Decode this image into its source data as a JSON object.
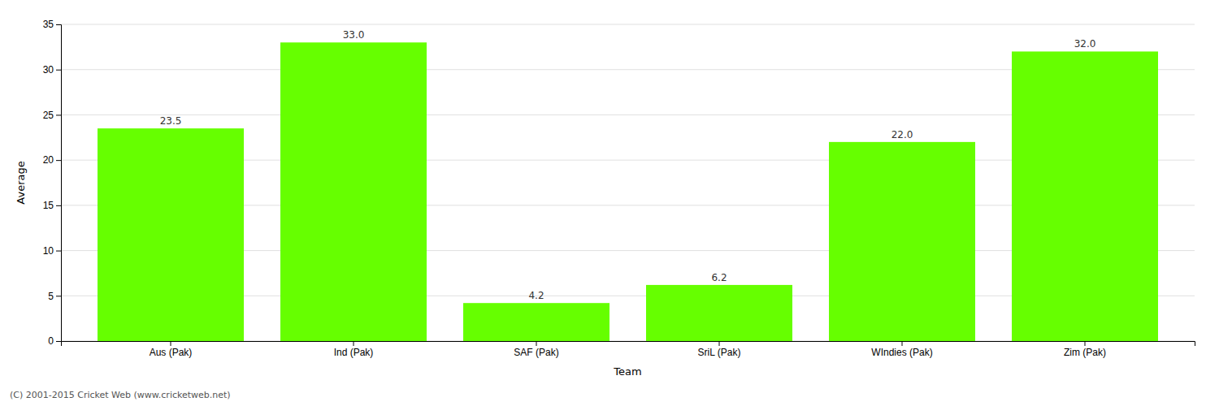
{
  "chart_data": {
    "type": "bar",
    "categories": [
      "Aus (Pak)",
      "Ind (Pak)",
      "SAF (Pak)",
      "SriL (Pak)",
      "WIndies (Pak)",
      "Zim (Pak)"
    ],
    "values": [
      23.5,
      33.0,
      4.2,
      6.2,
      22.0,
      32.0
    ],
    "value_labels": [
      "23.5",
      "33.0",
      "4.2",
      "6.2",
      "22.0",
      "32.0"
    ],
    "data_labels": true,
    "color": "#66ff00",
    "xlabel": "Team",
    "ylabel": "Average",
    "ylim": [
      0,
      35
    ],
    "yticks": [
      0,
      5,
      10,
      15,
      20,
      25,
      30,
      35
    ],
    "grid": true,
    "annotations": [
      "(C) 2001-2015 Cricket Web (www.cricketweb.net)"
    ]
  }
}
